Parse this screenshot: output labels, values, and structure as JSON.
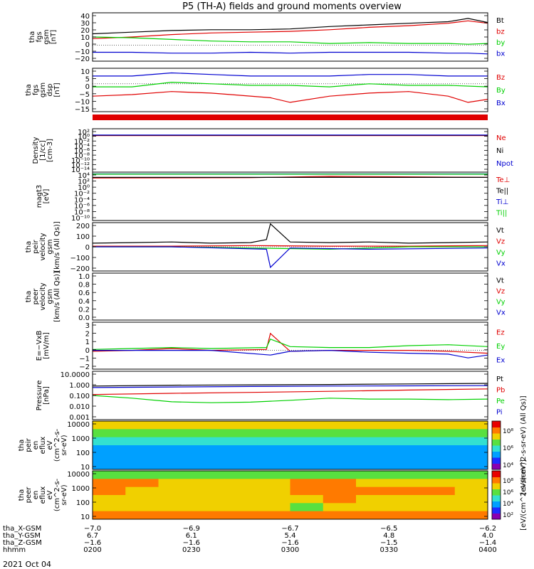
{
  "title": "P5 (TH-A) fields and ground moments overview",
  "date_label": "2021 Oct 04",
  "colors": {
    "black": "#000000",
    "red": "#e00000",
    "green": "#00d000",
    "blue": "#0000d0"
  },
  "chart_data": [
    {
      "type": "line",
      "ylabel": [
        "tha",
        "fgs",
        "gsm",
        "[nT]"
      ],
      "yticks": [
        "40",
        "30",
        "20",
        "10",
        "0",
        "−10",
        "−20"
      ],
      "ylim": [
        -20,
        40
      ],
      "legend": [
        {
          "name": "Bt",
          "color": "black"
        },
        {
          "name": "bz",
          "color": "red"
        },
        {
          "name": "by",
          "color": "green"
        },
        {
          "name": "bx",
          "color": "blue"
        }
      ],
      "series": [
        {
          "name": "Bt",
          "color": "black",
          "x": [
            0,
            0.1,
            0.2,
            0.3,
            0.4,
            0.5,
            0.6,
            0.7,
            0.8,
            0.9,
            0.95,
            1.0
          ],
          "values": [
            14,
            16,
            18,
            19,
            19,
            20,
            23,
            25,
            27,
            29,
            33,
            28
          ]
        },
        {
          "name": "bz",
          "color": "red",
          "x": [
            0,
            0.1,
            0.2,
            0.3,
            0.4,
            0.5,
            0.6,
            0.7,
            0.8,
            0.9,
            0.95,
            1.0
          ],
          "values": [
            8,
            10,
            13,
            15,
            16,
            17,
            19,
            22,
            24,
            27,
            30,
            27
          ]
        },
        {
          "name": "by",
          "color": "green",
          "x": [
            0,
            0.1,
            0.2,
            0.3,
            0.4,
            0.5,
            0.6,
            0.7,
            0.8,
            0.9,
            0.95,
            1.0
          ],
          "values": [
            10,
            9,
            7,
            5,
            4,
            4,
            2,
            3,
            2,
            2,
            1,
            2
          ]
        },
        {
          "name": "bx",
          "color": "blue",
          "x": [
            0,
            0.1,
            0.2,
            0.3,
            0.4,
            0.5,
            0.6,
            0.7,
            0.8,
            0.9,
            0.95,
            1.0
          ],
          "values": [
            -9,
            -9,
            -10,
            -10,
            -9,
            -10,
            -9,
            -9,
            -9,
            -10,
            -10,
            -11
          ]
        }
      ]
    },
    {
      "type": "line",
      "ylabel": [
        "tha",
        "fgs",
        "gsm",
        "dsp",
        "[nT]"
      ],
      "yticks": [
        "10",
        "5",
        "0",
        "−5",
        "−10",
        "−15"
      ],
      "ylim": [
        -18,
        10
      ],
      "legend": [
        {
          "name": "Bz",
          "color": "red"
        },
        {
          "name": "By",
          "color": "green"
        },
        {
          "name": "Bx",
          "color": "blue"
        }
      ],
      "series": [
        {
          "name": "Bz",
          "color": "red",
          "x": [
            0,
            0.1,
            0.2,
            0.3,
            0.35,
            0.45,
            0.5,
            0.6,
            0.7,
            0.8,
            0.9,
            0.95,
            1.0
          ],
          "values": [
            -8,
            -7,
            -5,
            -6,
            -7,
            -9,
            -12,
            -8,
            -6,
            -5,
            -8,
            -12,
            -10
          ]
        },
        {
          "name": "By",
          "color": "green",
          "x": [
            0,
            0.1,
            0.2,
            0.3,
            0.4,
            0.5,
            0.6,
            0.7,
            0.8,
            0.9,
            1.0
          ],
          "values": [
            -2,
            -2,
            1,
            0,
            -1,
            -1,
            -2,
            0,
            -1,
            -1,
            -2
          ]
        },
        {
          "name": "Bx",
          "color": "blue",
          "x": [
            0,
            0.1,
            0.2,
            0.3,
            0.4,
            0.5,
            0.6,
            0.7,
            0.8,
            0.9,
            1.0
          ],
          "values": [
            5,
            5,
            7,
            6,
            5,
            5,
            5,
            6,
            6,
            5,
            5
          ]
        }
      ]
    },
    {
      "type": "line",
      "ylabel": [
        "Density",
        "[1/cc]",
        "[cm-3]"
      ],
      "yticks": [
        "10²",
        "10⁰",
        "10⁻²",
        "10⁻⁴",
        "10⁻⁶",
        "10⁻⁸",
        "10⁻¹⁰",
        "10⁻¹²",
        "10⁻¹⁴"
      ],
      "log_scale": true,
      "ylim": [
        1e-14,
        100
      ],
      "legend": [
        {
          "name": "Ne",
          "color": "red"
        },
        {
          "name": "Ni",
          "color": "black"
        },
        {
          "name": "Npot",
          "color": "blue"
        }
      ],
      "series": [
        {
          "name": "Ne",
          "color": "red",
          "x": [
            0,
            1.0
          ],
          "values": [
            0.3,
            0.3
          ]
        },
        {
          "name": "Ni",
          "color": "black",
          "x": [
            0,
            1.0
          ],
          "values": [
            0.4,
            0.4
          ]
        },
        {
          "name": "Npot",
          "color": "blue",
          "x": [
            0,
            1.0
          ],
          "values": [
            0.5,
            0.5
          ]
        }
      ]
    },
    {
      "type": "line",
      "ylabel": [
        "magt3",
        "[eV]"
      ],
      "yticks": [
        "10⁴",
        "10²",
        "10⁰",
        "10⁻²",
        "10⁻⁴",
        "10⁻⁶",
        "10⁻⁸",
        "10⁻¹⁰"
      ],
      "log_scale": true,
      "ylim": [
        1e-10,
        10000
      ],
      "legend": [
        {
          "name": "Te⊥",
          "color": "red"
        },
        {
          "name": "Te||",
          "color": "black"
        },
        {
          "name": "Ti⊥",
          "color": "blue"
        },
        {
          "name": "Ti||",
          "color": "green"
        }
      ],
      "series": [
        {
          "name": "Te⊥",
          "color": "red",
          "x": [
            0,
            0.4,
            0.6,
            1.0
          ],
          "values": [
            200,
            250,
            600,
            300
          ]
        },
        {
          "name": "Te||",
          "color": "black",
          "x": [
            0,
            1.0
          ],
          "values": [
            300,
            300
          ]
        },
        {
          "name": "Ti⊥",
          "color": "blue",
          "x": [
            0,
            1.0
          ],
          "values": [
            3000,
            3000
          ]
        },
        {
          "name": "Ti||",
          "color": "green",
          "x": [
            0,
            1.0
          ],
          "values": [
            2500,
            2500
          ]
        }
      ]
    },
    {
      "type": "line",
      "ylabel": [
        "tha",
        "peir",
        "velocity",
        "gsm",
        "[km/s (All Qs)]"
      ],
      "yticks": [
        "200",
        "100",
        "0",
        "−100",
        "−200"
      ],
      "ylim": [
        -200,
        200
      ],
      "legend": [
        {
          "name": "Vt",
          "color": "black"
        },
        {
          "name": "Vz",
          "color": "red"
        },
        {
          "name": "Vy",
          "color": "green"
        },
        {
          "name": "Vx",
          "color": "blue"
        }
      ],
      "series": [
        {
          "name": "Vt",
          "color": "black",
          "x": [
            0,
            0.1,
            0.2,
            0.3,
            0.4,
            0.44,
            0.45,
            0.5,
            0.6,
            0.7,
            0.8,
            0.9,
            1.0
          ],
          "values": [
            30,
            35,
            40,
            30,
            35,
            60,
            190,
            40,
            35,
            40,
            30,
            35,
            40
          ]
        },
        {
          "name": "Vz",
          "color": "red",
          "x": [
            0,
            0.2,
            0.4,
            0.6,
            0.8,
            1.0
          ],
          "values": [
            5,
            5,
            10,
            5,
            5,
            10
          ]
        },
        {
          "name": "Vy",
          "color": "green",
          "x": [
            0,
            0.2,
            0.4,
            0.6,
            0.8,
            1.0
          ],
          "values": [
            0,
            0,
            -10,
            -20,
            0,
            0
          ]
        },
        {
          "name": "Vx",
          "color": "blue",
          "x": [
            0,
            0.2,
            0.44,
            0.45,
            0.5,
            0.7,
            1.0
          ],
          "values": [
            0,
            0,
            -20,
            -170,
            -10,
            -20,
            -10
          ]
        }
      ]
    },
    {
      "type": "line",
      "ylabel": [
        "tha",
        "peer",
        "velocity",
        "gsm",
        "[km/s (All Qs)]"
      ],
      "yticks": [
        "1.0",
        "0.8",
        "0.6",
        "0.4",
        "0.2",
        "0.0"
      ],
      "ylim": [
        0,
        1
      ],
      "legend": [
        {
          "name": "Vt",
          "color": "black"
        },
        {
          "name": "Vz",
          "color": "red"
        },
        {
          "name": "Vy",
          "color": "green"
        },
        {
          "name": "Vx",
          "color": "blue"
        }
      ],
      "series": []
    },
    {
      "type": "line",
      "ylabel": [
        "E=−VxB",
        "[mV/m]"
      ],
      "yticks": [
        "3",
        "2",
        "1",
        "0",
        "−1",
        "−2"
      ],
      "ylim": [
        -2,
        3
      ],
      "legend": [
        {
          "name": "Ez",
          "color": "red"
        },
        {
          "name": "Ey",
          "color": "green"
        },
        {
          "name": "Ex",
          "color": "blue"
        }
      ],
      "series": [
        {
          "name": "Ez",
          "color": "red",
          "x": [
            0,
            0.1,
            0.2,
            0.3,
            0.44,
            0.45,
            0.5,
            0.6,
            0.7,
            0.8,
            0.9,
            1.0
          ],
          "values": [
            -0.1,
            0,
            0.2,
            0,
            0.1,
            1.8,
            -0.1,
            0,
            0,
            0,
            -0.1,
            -0.3
          ]
        },
        {
          "name": "Ey",
          "color": "green",
          "x": [
            0,
            0.1,
            0.2,
            0.3,
            0.44,
            0.45,
            0.5,
            0.6,
            0.7,
            0.8,
            0.9,
            1.0
          ],
          "values": [
            0.1,
            0.2,
            0.3,
            0.2,
            0.3,
            1.2,
            0.4,
            0.3,
            0.3,
            0.5,
            0.6,
            0.4
          ]
        },
        {
          "name": "Ex",
          "color": "blue",
          "x": [
            0,
            0.1,
            0.2,
            0.3,
            0.45,
            0.5,
            0.6,
            0.7,
            0.8,
            0.9,
            0.95,
            1.0
          ],
          "values": [
            0,
            0,
            0,
            0,
            -0.5,
            -0.1,
            0,
            -0.2,
            -0.3,
            -0.4,
            -0.8,
            -0.5
          ]
        }
      ]
    },
    {
      "type": "line",
      "ylabel": [
        "Pressure",
        "[nPa]"
      ],
      "yticks": [
        "10.0000",
        "1.000",
        "0.100",
        "0.010",
        "0.001"
      ],
      "log_scale": true,
      "ylim": [
        0.001,
        10
      ],
      "legend": [
        {
          "name": "Pt",
          "color": "black"
        },
        {
          "name": "Pb",
          "color": "red"
        },
        {
          "name": "Pe",
          "color": "green"
        },
        {
          "name": "Pi",
          "color": "blue"
        }
      ],
      "series": [
        {
          "name": "Pt",
          "color": "black",
          "x": [
            0,
            0.2,
            0.4,
            0.6,
            0.8,
            1.0
          ],
          "values": [
            0.6,
            0.7,
            0.75,
            0.8,
            0.9,
            1.0
          ]
        },
        {
          "name": "Pb",
          "color": "red",
          "x": [
            0,
            0.2,
            0.4,
            0.6,
            0.8,
            1.0
          ],
          "values": [
            0.12,
            0.15,
            0.18,
            0.22,
            0.28,
            0.35
          ]
        },
        {
          "name": "Pe",
          "color": "green",
          "x": [
            0,
            0.1,
            0.2,
            0.3,
            0.4,
            0.5,
            0.6,
            0.7,
            0.8,
            0.9,
            1.0
          ],
          "values": [
            0.1,
            0.06,
            0.03,
            0.025,
            0.028,
            0.04,
            0.06,
            0.05,
            0.05,
            0.045,
            0.05
          ]
        },
        {
          "name": "Pi",
          "color": "blue",
          "x": [
            0,
            0.2,
            0.4,
            0.6,
            0.8,
            1.0
          ],
          "values": [
            0.45,
            0.5,
            0.55,
            0.6,
            0.62,
            0.65
          ]
        }
      ]
    },
    {
      "type": "heatmap",
      "ylabel": [
        "tha",
        "peir",
        "en",
        "eflux",
        "eV",
        "(cm^2-s-",
        "sr-eV)"
      ],
      "yticks": [
        "10000",
        "1000",
        "100",
        "10"
      ],
      "log_scale": true,
      "ylim": [
        5,
        25000
      ],
      "colorbar_ticks": [
        "10⁸",
        "10⁶",
        "10⁴"
      ],
      "colorbar_label": "[eV/(cm^2-s-sr-eV) (All Qs)]",
      "z": [
        [
          5,
          5,
          5,
          5,
          5,
          5,
          5,
          5,
          5,
          5,
          5,
          5
        ],
        [
          4,
          4,
          4,
          4,
          4,
          4,
          4,
          4,
          4,
          4,
          4,
          4
        ],
        [
          3,
          3,
          3,
          3,
          3,
          3,
          3,
          3,
          3,
          3,
          3,
          3
        ],
        [
          2,
          2,
          2,
          2,
          2,
          2,
          2,
          2,
          2,
          2,
          2,
          2
        ],
        [
          2,
          2,
          2,
          2,
          2,
          2,
          2,
          2,
          2,
          2,
          2,
          2
        ],
        [
          2,
          2,
          2,
          2,
          2,
          2,
          2,
          2,
          2,
          2,
          2,
          2
        ]
      ]
    },
    {
      "type": "heatmap",
      "ylabel": [
        "tha",
        "peer",
        "en",
        "eflux",
        "eV",
        "(cm^2-s-",
        "sr-eV)"
      ],
      "yticks": [
        "10000",
        "1000",
        "100",
        "10"
      ],
      "log_scale": true,
      "ylim": [
        5,
        25000
      ],
      "colorbar_ticks": [
        "10⁸",
        "10⁶",
        "10⁴",
        "10²"
      ],
      "colorbar_label": "[eV/(cm^2-s-sr-eV)]",
      "z": [
        [
          4,
          4,
          4,
          4,
          4,
          4,
          4,
          4,
          4,
          4,
          4,
          4
        ],
        [
          6,
          6,
          5,
          5,
          5,
          5,
          6,
          6,
          5,
          5,
          5,
          5
        ],
        [
          6,
          5,
          5,
          5,
          5,
          5,
          6,
          6,
          6,
          6,
          6,
          5
        ],
        [
          5,
          5,
          5,
          5,
          5,
          5,
          5,
          6,
          5,
          5,
          5,
          5
        ],
        [
          5,
          5,
          5,
          5,
          5,
          5,
          4,
          5,
          5,
          5,
          5,
          5
        ],
        [
          6,
          6,
          6,
          6,
          6,
          6,
          6,
          6,
          6,
          6,
          6,
          6
        ]
      ]
    }
  ],
  "xaxis": {
    "rows": [
      {
        "label": "tha_X-GSM",
        "values": [
          "−7.0",
          "−6.9",
          "−6.7",
          "−6.5",
          "−6.2"
        ]
      },
      {
        "label": "tha_Y-GSM",
        "values": [
          "6.7",
          "6.1",
          "5.4",
          "4.8",
          "4.0"
        ]
      },
      {
        "label": "tha_Z-GSM",
        "values": [
          "−1.6",
          "−1.6",
          "−1.6",
          "−1.5",
          "−1.4"
        ]
      },
      {
        "label": "hhmm",
        "values": [
          "0200",
          "0230",
          "0300",
          "0330",
          "0400"
        ]
      }
    ]
  }
}
